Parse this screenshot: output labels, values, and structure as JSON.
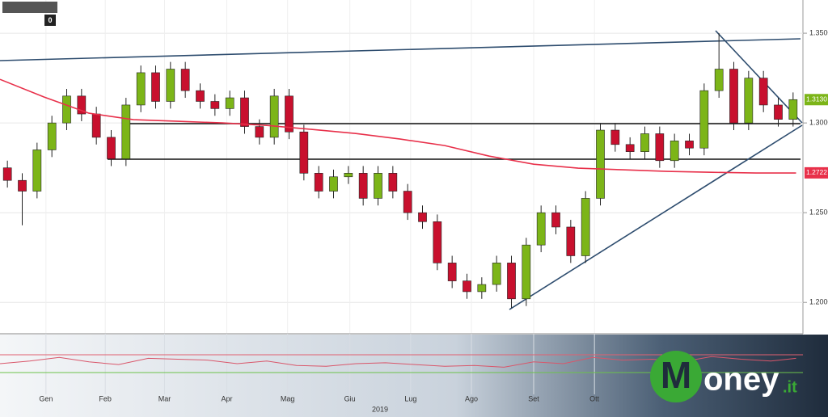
{
  "chart_data": {
    "type": "candlestick",
    "xlim": [
      0,
      54
    ],
    "ylim": [
      1.183,
      1.3685
    ],
    "yticks": [
      {
        "value": 1.2,
        "label": "1.2000"
      },
      {
        "value": 1.25,
        "label": "1.2500"
      },
      {
        "value": 1.3,
        "label": "1.3000"
      },
      {
        "value": 1.35,
        "label": "1.3500"
      }
    ],
    "xticks": [
      {
        "value": 3.1,
        "label": "Gen"
      },
      {
        "value": 7.1,
        "label": "Feb"
      },
      {
        "value": 11.1,
        "label": "Mar"
      },
      {
        "value": 15.3,
        "label": "Apr"
      },
      {
        "value": 19.4,
        "label": "Mag"
      },
      {
        "value": 23.6,
        "label": "Giu"
      },
      {
        "value": 27.7,
        "label": "Lug"
      },
      {
        "value": 31.8,
        "label": "Ago"
      },
      {
        "value": 36,
        "label": "Set"
      },
      {
        "value": 40.1,
        "label": "Ott"
      }
    ],
    "year_label": "2019",
    "up_color": "#7cb518",
    "down_color": "#c8102e",
    "open": [
      1.275,
      1.268,
      1.262,
      1.285,
      1.3,
      1.315,
      1.305,
      1.292,
      1.28,
      1.31,
      1.328,
      1.312,
      1.33,
      1.318,
      1.312,
      1.308,
      1.314,
      1.298,
      1.292,
      1.315,
      1.295,
      1.272,
      1.262,
      1.27,
      1.272,
      1.258,
      1.272,
      1.262,
      1.25,
      1.245,
      1.222,
      1.212,
      1.206,
      1.21,
      1.222,
      1.202,
      1.232,
      1.25,
      1.242,
      1.226,
      1.258,
      1.296,
      1.288,
      1.284,
      1.294,
      1.279,
      1.29,
      1.286,
      1.318,
      1.33,
      1.3,
      1.325,
      1.31,
      1.302
    ],
    "high": [
      1.279,
      1.272,
      1.289,
      1.304,
      1.319,
      1.319,
      1.309,
      1.296,
      1.314,
      1.332,
      1.332,
      1.334,
      1.334,
      1.322,
      1.316,
      1.318,
      1.318,
      1.302,
      1.319,
      1.319,
      1.299,
      1.276,
      1.274,
      1.276,
      1.276,
      1.276,
      1.276,
      1.266,
      1.254,
      1.249,
      1.226,
      1.216,
      1.214,
      1.226,
      1.226,
      1.236,
      1.254,
      1.254,
      1.246,
      1.262,
      1.3,
      1.3,
      1.292,
      1.298,
      1.298,
      1.294,
      1.294,
      1.322,
      1.35,
      1.334,
      1.329,
      1.329,
      1.314,
      1.317
    ],
    "low": [
      1.264,
      1.243,
      1.258,
      1.281,
      1.296,
      1.301,
      1.288,
      1.276,
      1.276,
      1.306,
      1.308,
      1.308,
      1.314,
      1.308,
      1.304,
      1.304,
      1.294,
      1.288,
      1.288,
      1.291,
      1.268,
      1.258,
      1.258,
      1.266,
      1.254,
      1.254,
      1.258,
      1.246,
      1.241,
      1.218,
      1.208,
      1.202,
      1.202,
      1.206,
      1.197,
      1.198,
      1.228,
      1.238,
      1.222,
      1.222,
      1.254,
      1.284,
      1.28,
      1.28,
      1.275,
      1.275,
      1.282,
      1.282,
      1.314,
      1.296,
      1.296,
      1.306,
      1.298,
      1.298
    ],
    "close": [
      1.268,
      1.262,
      1.285,
      1.3,
      1.315,
      1.305,
      1.292,
      1.28,
      1.31,
      1.328,
      1.312,
      1.33,
      1.318,
      1.312,
      1.308,
      1.314,
      1.298,
      1.292,
      1.315,
      1.295,
      1.272,
      1.262,
      1.27,
      1.272,
      1.258,
      1.272,
      1.262,
      1.25,
      1.245,
      1.222,
      1.212,
      1.206,
      1.21,
      1.222,
      1.202,
      1.232,
      1.25,
      1.242,
      1.226,
      1.258,
      1.296,
      1.288,
      1.284,
      1.294,
      1.279,
      1.29,
      1.286,
      1.318,
      1.33,
      1.3,
      1.325,
      1.31,
      1.302,
      1.313
    ],
    "last_price": {
      "value": 1.313,
      "label": "1.3130"
    },
    "moving_average": {
      "color": "#e8304a",
      "x": [
        0,
        3,
        6,
        9,
        12,
        15,
        18,
        21,
        24,
        27,
        30,
        33,
        36,
        39,
        42,
        45,
        48,
        51,
        53.7
      ],
      "values": [
        1.3243,
        1.3144,
        1.3054,
        1.3018,
        1.3009,
        1.3,
        1.2986,
        1.2964,
        1.2941,
        1.291,
        1.2874,
        1.2815,
        1.277,
        1.2748,
        1.2739,
        1.273,
        1.2725,
        1.2721,
        1.2721
      ],
      "last": {
        "value": 1.2722,
        "label": "1.2722"
      }
    },
    "oscillator": {
      "color": "#d9566a",
      "ylim": [
        0,
        100
      ],
      "levels": [
        60,
        40
      ],
      "level_colors": [
        "#e06070",
        "#6cc24a"
      ],
      "x": [
        0,
        2,
        4,
        6,
        8,
        10,
        12,
        14,
        16,
        18,
        20,
        22,
        24,
        26,
        28,
        30,
        32,
        34,
        36,
        38,
        40,
        42,
        44,
        46,
        48,
        50,
        52,
        53.7
      ],
      "values": [
        50,
        53,
        57,
        52,
        49,
        56,
        55,
        54,
        50,
        53,
        48,
        47,
        50,
        51,
        49,
        47,
        48,
        46,
        52,
        50,
        57,
        54,
        55,
        52,
        58,
        55,
        53,
        56
      ]
    },
    "toolbar_value": "0",
    "logo": {
      "initial": "M",
      "text": "oney",
      "suffix": ".it"
    }
  }
}
